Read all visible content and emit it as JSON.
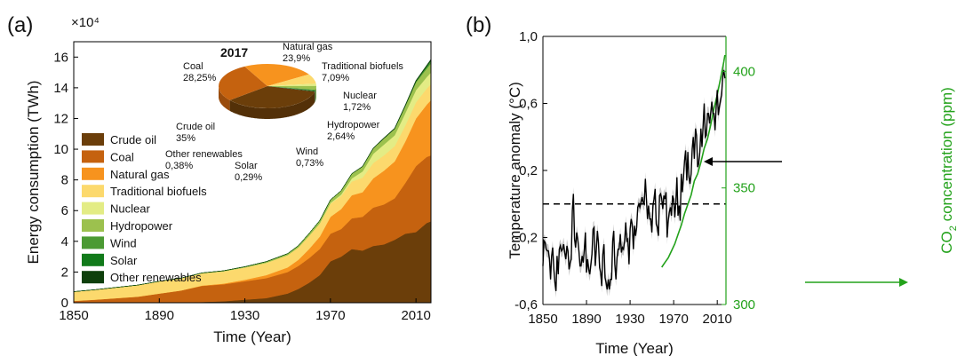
{
  "chart_data": [
    {
      "panel_label": "(a)",
      "type": "area",
      "stacked": true,
      "xlabel": "Time (Year)",
      "ylabel": "Energy consumption (TWh)",
      "y_multiplier": "×10⁴",
      "xlim": [
        1850,
        2017
      ],
      "ylim": [
        0,
        17
      ],
      "x_ticks": [
        "1850",
        "1890",
        "1930",
        "1970",
        "2010"
      ],
      "y_ticks": [
        "0",
        "2",
        "4",
        "6",
        "8",
        "10",
        "12",
        "14",
        "16"
      ],
      "legend_position": "left",
      "x": [
        1850,
        1860,
        1870,
        1880,
        1890,
        1900,
        1910,
        1920,
        1930,
        1940,
        1950,
        1955,
        1960,
        1965,
        1970,
        1975,
        1980,
        1985,
        1990,
        1995,
        2000,
        2005,
        2010,
        2015,
        2017
      ],
      "series": [
        {
          "name": "Crude oil",
          "color": "#6b3e0a",
          "values": [
            0,
            0,
            0,
            0,
            0,
            0,
            0.05,
            0.1,
            0.2,
            0.3,
            0.6,
            0.9,
            1.3,
            1.8,
            2.7,
            3.0,
            3.5,
            3.4,
            3.7,
            3.8,
            4.1,
            4.5,
            4.6,
            5.2,
            5.3
          ]
        },
        {
          "name": "Coal",
          "color": "#c5620f",
          "values": [
            0.12,
            0.2,
            0.3,
            0.4,
            0.6,
            0.8,
            1.05,
            1.1,
            1.2,
            1.3,
            1.4,
            1.5,
            1.6,
            1.7,
            1.8,
            1.8,
            2.0,
            2.2,
            2.5,
            2.6,
            2.7,
            3.3,
            4.3,
            4.3,
            4.3
          ]
        },
        {
          "name": "Natural gas",
          "color": "#f7931e",
          "values": [
            0,
            0,
            0,
            0,
            0,
            0,
            0.02,
            0.05,
            0.1,
            0.2,
            0.3,
            0.4,
            0.6,
            0.8,
            1.1,
            1.3,
            1.5,
            1.6,
            1.9,
            2.2,
            2.4,
            2.7,
            3.1,
            3.4,
            3.6
          ]
        },
        {
          "name": "Traditional biofuels",
          "color": "#fcd96d",
          "values": [
            0.6,
            0.65,
            0.7,
            0.75,
            0.8,
            0.8,
            0.8,
            0.8,
            0.8,
            0.8,
            0.8,
            0.8,
            0.85,
            0.85,
            0.85,
            0.85,
            0.9,
            0.95,
            1.0,
            1.0,
            1.0,
            1.05,
            1.05,
            1.05,
            1.05
          ]
        },
        {
          "name": "Nuclear",
          "color": "#e3ec85",
          "values": [
            0,
            0,
            0,
            0,
            0,
            0,
            0,
            0,
            0,
            0,
            0,
            0,
            0.01,
            0.02,
            0.05,
            0.1,
            0.2,
            0.4,
            0.6,
            0.7,
            0.7,
            0.8,
            0.8,
            0.75,
            0.75
          ]
        },
        {
          "name": "Hydropower",
          "color": "#9cc14e",
          "values": [
            0,
            0,
            0,
            0,
            0,
            0,
            0.02,
            0.03,
            0.05,
            0.08,
            0.1,
            0.12,
            0.15,
            0.18,
            0.2,
            0.25,
            0.3,
            0.32,
            0.35,
            0.4,
            0.42,
            0.45,
            0.5,
            0.55,
            0.6
          ]
        },
        {
          "name": "Wind",
          "color": "#4b9a33",
          "values": [
            0,
            0,
            0,
            0,
            0,
            0,
            0,
            0,
            0,
            0,
            0,
            0,
            0,
            0,
            0,
            0,
            0,
            0,
            0,
            0.005,
            0.01,
            0.03,
            0.06,
            0.12,
            0.15
          ]
        },
        {
          "name": "Solar",
          "color": "#117a1a",
          "values": [
            0,
            0,
            0,
            0,
            0,
            0,
            0,
            0,
            0,
            0,
            0,
            0,
            0,
            0,
            0,
            0,
            0,
            0,
            0,
            0,
            0,
            0,
            0.01,
            0.04,
            0.05
          ]
        },
        {
          "name": "Other renewables",
          "color": "#0e3f0c",
          "values": [
            0,
            0,
            0,
            0,
            0,
            0,
            0,
            0,
            0,
            0,
            0,
            0,
            0,
            0,
            0,
            0.005,
            0.01,
            0.015,
            0.02,
            0.03,
            0.04,
            0.05,
            0.06,
            0.06,
            0.06
          ]
        }
      ],
      "inset_pie": {
        "type": "pie",
        "title": "2017",
        "slices": [
          {
            "name": "Crude oil",
            "label": "Crude oil",
            "value_text": "35%",
            "value": 35,
            "color": "#6b3e0a"
          },
          {
            "name": "Coal",
            "label": "Coal",
            "value_text": "28,25%",
            "value": 28.25,
            "color": "#c5620f"
          },
          {
            "name": "Natural gas",
            "label": "Natural gas",
            "value_text": "23,9%",
            "value": 23.9,
            "color": "#f7931e"
          },
          {
            "name": "Traditional biofuels",
            "label": "Traditional biofuels",
            "value_text": "7,09%",
            "value": 7.09,
            "color": "#fcd96d"
          },
          {
            "name": "Nuclear",
            "label": "Nuclear",
            "value_text": "1,72%",
            "value": 1.72,
            "color": "#e3ec85"
          },
          {
            "name": "Hydropower",
            "label": "Hydropower",
            "value_text": "2,64%",
            "value": 2.64,
            "color": "#9cc14e"
          },
          {
            "name": "Wind",
            "label": "Wind",
            "value_text": "0,73%",
            "value": 0.73,
            "color": "#4b9a33"
          },
          {
            "name": "Solar",
            "label": "Solar",
            "value_text": "0,29%",
            "value": 0.29,
            "color": "#117a1a"
          },
          {
            "name": "Other renewables",
            "label": "Other renewables",
            "value_text": "0,38%",
            "value": 0.38,
            "color": "#0e3f0c"
          }
        ]
      }
    },
    {
      "panel_label": "(b)",
      "type": "line",
      "xlabel": "Time (Year)",
      "ylabel": "Temperature anomaly (°C)",
      "y2label_main": "CO",
      "y2label_sub": "2",
      "y2label_rest": " concentration (ppm)",
      "xlim": [
        1850,
        2018
      ],
      "ylim": [
        -0.6,
        1.0
      ],
      "y2lim": [
        300,
        415
      ],
      "x_ticks": [
        "1850",
        "1890",
        "1930",
        "1970",
        "2010"
      ],
      "y_ticks": [
        "-0,6",
        "-0,2",
        "0,2",
        "0,6",
        "1,0"
      ],
      "y_tick_values": [
        -0.6,
        -0.2,
        0.2,
        0.6,
        1.0
      ],
      "y2_ticks": [
        "300",
        "350",
        "400"
      ],
      "y2_tick_values": [
        300,
        350,
        400
      ],
      "y2_color": "#23a21b",
      "reference_line_y": 0.0,
      "series": [
        {
          "name": "Temperature anomaly",
          "axis": "left",
          "color": "#000000",
          "uncertainty": 0.04,
          "x": [
            1850,
            1851,
            1852,
            1853,
            1854,
            1855,
            1856,
            1857,
            1858,
            1859,
            1860,
            1861,
            1862,
            1863,
            1864,
            1865,
            1866,
            1867,
            1868,
            1869,
            1870,
            1871,
            1872,
            1873,
            1874,
            1875,
            1876,
            1877,
            1878,
            1879,
            1880,
            1881,
            1882,
            1883,
            1884,
            1885,
            1886,
            1887,
            1888,
            1889,
            1890,
            1891,
            1892,
            1893,
            1894,
            1895,
            1896,
            1897,
            1898,
            1899,
            1900,
            1901,
            1902,
            1903,
            1904,
            1905,
            1906,
            1907,
            1908,
            1909,
            1910,
            1911,
            1912,
            1913,
            1914,
            1915,
            1916,
            1917,
            1918,
            1919,
            1920,
            1921,
            1922,
            1923,
            1924,
            1925,
            1926,
            1927,
            1928,
            1929,
            1930,
            1931,
            1932,
            1933,
            1934,
            1935,
            1936,
            1937,
            1938,
            1939,
            1940,
            1941,
            1942,
            1943,
            1944,
            1945,
            1946,
            1947,
            1948,
            1949,
            1950,
            1951,
            1952,
            1953,
            1954,
            1955,
            1956,
            1957,
            1958,
            1959,
            1960,
            1961,
            1962,
            1963,
            1964,
            1965,
            1966,
            1967,
            1968,
            1969,
            1970,
            1971,
            1972,
            1973,
            1974,
            1975,
            1976,
            1977,
            1978,
            1979,
            1980,
            1981,
            1982,
            1983,
            1984,
            1985,
            1986,
            1987,
            1988,
            1989,
            1990,
            1991,
            1992,
            1993,
            1994,
            1995,
            1996,
            1997,
            1998,
            1999,
            2000,
            2001,
            2002,
            2003,
            2004,
            2005,
            2006,
            2007,
            2008,
            2009,
            2010,
            2011,
            2012,
            2013,
            2014,
            2015,
            2016,
            2017
          ],
          "values": [
            -0.37,
            -0.22,
            -0.23,
            -0.27,
            -0.28,
            -0.28,
            -0.33,
            -0.45,
            -0.31,
            -0.26,
            -0.39,
            -0.47,
            -0.52,
            -0.31,
            -0.42,
            -0.27,
            -0.25,
            -0.28,
            -0.27,
            -0.24,
            -0.29,
            -0.33,
            -0.25,
            -0.28,
            -0.39,
            -0.35,
            -0.33,
            -0.04,
            0.06,
            -0.21,
            -0.26,
            -0.17,
            -0.21,
            -0.28,
            -0.37,
            -0.37,
            -0.31,
            -0.35,
            -0.27,
            -0.17,
            -0.41,
            -0.33,
            -0.39,
            -0.42,
            -0.36,
            -0.3,
            -0.15,
            -0.14,
            -0.37,
            -0.27,
            -0.16,
            -0.23,
            -0.38,
            -0.41,
            -0.49,
            -0.3,
            -0.24,
            -0.44,
            -0.47,
            -0.51,
            -0.45,
            -0.51,
            -0.45,
            -0.45,
            -0.22,
            -0.16,
            -0.36,
            -0.45,
            -0.32,
            -0.27,
            -0.27,
            -0.18,
            -0.29,
            -0.26,
            -0.27,
            -0.22,
            -0.11,
            -0.22,
            -0.21,
            -0.36,
            -0.15,
            -0.09,
            -0.12,
            -0.27,
            -0.13,
            -0.19,
            -0.14,
            -0.02,
            -0.0,
            -0.02,
            0.01,
            0.04,
            0.01,
            0.0,
            0.15,
            0.03,
            -0.09,
            -0.01,
            -0.09,
            -0.09,
            -0.17,
            -0.01,
            0.03,
            0.09,
            -0.12,
            -0.14,
            -0.19,
            0.05,
            0.06,
            0.03,
            -0.03,
            0.05,
            0.03,
            0.07,
            -0.2,
            -0.1,
            -0.05,
            -0.02,
            -0.07,
            0.05,
            0.03,
            -0.08,
            0.01,
            0.16,
            -0.07,
            -0.01,
            -0.1,
            0.18,
            0.07,
            0.16,
            0.26,
            0.32,
            0.14,
            0.31,
            0.16,
            0.12,
            0.18,
            0.33,
            0.4,
            0.27,
            0.45,
            0.41,
            0.22,
            0.24,
            0.31,
            0.45,
            0.34,
            0.47,
            0.6,
            0.4,
            0.41,
            0.54,
            0.54,
            0.48,
            0.54,
            0.61,
            0.54,
            0.54,
            0.44,
            0.58,
            0.68,
            0.53,
            0.58,
            0.62,
            0.65,
            0.76,
            0.8,
            0.75
          ]
        },
        {
          "name": "CO2 concentration",
          "axis": "right",
          "color": "#23a21b",
          "x": [
            1959,
            1962,
            1965,
            1968,
            1971,
            1974,
            1977,
            1980,
            1983,
            1986,
            1989,
            1992,
            1995,
            1998,
            2001,
            2004,
            2007,
            2010,
            2013,
            2016,
            2017
          ],
          "values": [
            316,
            318,
            320,
            323,
            326,
            330,
            334,
            339,
            343,
            347,
            353,
            356,
            361,
            367,
            371,
            377,
            384,
            390,
            397,
            404,
            407
          ]
        }
      ]
    }
  ]
}
